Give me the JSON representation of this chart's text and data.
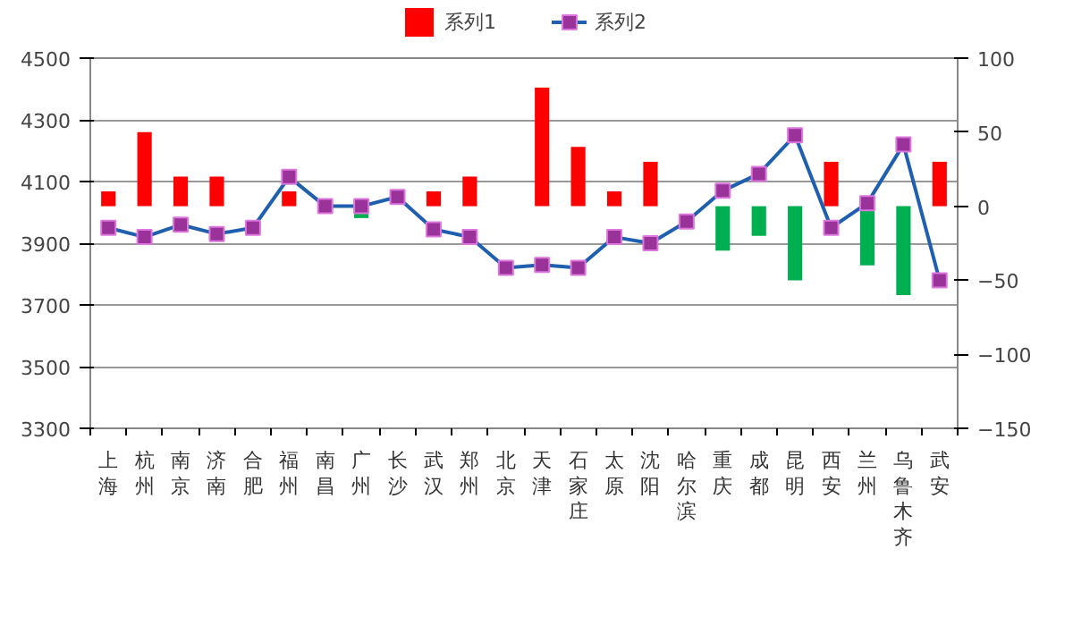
{
  "chart_data": {
    "type": "bar",
    "categories": [
      "上海",
      "杭州",
      "南京",
      "济南",
      "合肥",
      "福州",
      "南昌",
      "广州",
      "长沙",
      "武汉",
      "郑州",
      "北京",
      "天津",
      "石家庄",
      "太原",
      "沈阳",
      "哈尔滨",
      "重庆",
      "成都",
      "昆明",
      "西安",
      "兰州",
      "乌鲁木齐",
      "武安"
    ],
    "series": [
      {
        "name": "系列1",
        "axis": "y2",
        "color": "#ff0000",
        "colors": [
          "#ff0000",
          "#ff0000",
          "#ff0000",
          "#ff0000",
          null,
          "#ff0000",
          null,
          "#00b050",
          null,
          "#ff0000",
          "#ff0000",
          null,
          "#ff0000",
          "#ff0000",
          "#ff0000",
          "#ff0000",
          null,
          "#00b050",
          "#00b050",
          "#00b050",
          "#ff0000",
          "#00b050",
          "#00b050",
          "#ff0000"
        ],
        "values": [
          10,
          50,
          20,
          20,
          null,
          10,
          null,
          -8,
          null,
          10,
          20,
          null,
          80,
          40,
          10,
          30,
          null,
          -30,
          -20,
          -50,
          30,
          -40,
          -60,
          30
        ]
      },
      {
        "name": "系列2",
        "type": "line",
        "color": "#1f5fb0",
        "values": [
          3950,
          3920,
          3960,
          3930,
          3950,
          4115,
          4020,
          4020,
          4050,
          3945,
          3920,
          3820,
          3830,
          3820,
          3920,
          3900,
          3970,
          4070,
          4125,
          4250,
          3950,
          4030,
          4220,
          3780
        ]
      }
    ],
    "ylim": [
      3300,
      4500
    ],
    "yticks": [
      3300,
      3500,
      3700,
      3900,
      4100,
      4300,
      4500
    ],
    "y2lim": [
      -150,
      100
    ],
    "y2ticks": [
      -150,
      -100,
      -50,
      0,
      50,
      100
    ],
    "grid": "y",
    "legend": "top",
    "marker": "square",
    "line_style": "solid"
  }
}
